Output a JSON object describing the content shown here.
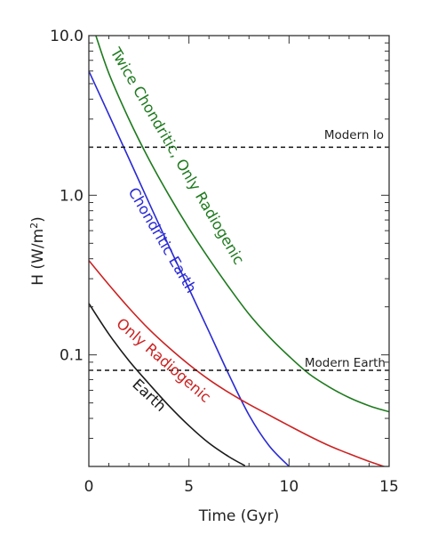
{
  "chart_data": {
    "type": "line",
    "xlabel": "Time (Gyr)",
    "ylabel_main": "H (W/m",
    "ylabel_sup": "2",
    "ylabel_close": ")",
    "xlim": [
      0,
      15
    ],
    "ylim": [
      0.02,
      10.0
    ],
    "yscale": "log",
    "grid": false,
    "x_ticks": [
      0,
      5,
      10,
      15
    ],
    "x_tick_labels": [
      "0",
      "5",
      "10",
      "15"
    ],
    "y_ticks": [
      0.1,
      1.0,
      10.0
    ],
    "y_tick_labels": [
      "0.1",
      "1.0",
      "10.0"
    ],
    "colors": {
      "twice_chondritic": "#1e7a1e",
      "chondritic_earth": "#2a2ad4",
      "only_radiogenic": "#cc2222",
      "earth": "#1a1a1a",
      "reference": "#111111",
      "axes": "#333333"
    },
    "series": [
      {
        "key": "twice_chondritic",
        "name": "Twice Chondritic, Only Radiogenic",
        "x": [
          0.35,
          1,
          2,
          3,
          4,
          5,
          6,
          7,
          8,
          9,
          10,
          11,
          12,
          13,
          14,
          15
        ],
        "y": [
          10.0,
          5.8,
          3.0,
          1.68,
          1.0,
          0.62,
          0.4,
          0.265,
          0.18,
          0.13,
          0.098,
          0.076,
          0.063,
          0.054,
          0.048,
          0.044
        ]
      },
      {
        "key": "chondritic_earth",
        "name": "Chondritic Earth",
        "x": [
          0,
          1,
          2,
          3,
          4,
          5,
          6,
          7,
          8,
          9,
          10
        ],
        "y": [
          6.0,
          3.2,
          1.7,
          0.9,
          0.48,
          0.26,
          0.14,
          0.075,
          0.042,
          0.027,
          0.02
        ]
      },
      {
        "key": "only_radiogenic",
        "name": "Only Radiogenic",
        "x": [
          0,
          1,
          2,
          3,
          4,
          5,
          6,
          7,
          8,
          9,
          10,
          11,
          12,
          13,
          14,
          15
        ],
        "y": [
          0.39,
          0.275,
          0.197,
          0.145,
          0.111,
          0.087,
          0.07,
          0.058,
          0.049,
          0.042,
          0.036,
          0.031,
          0.027,
          0.024,
          0.0215,
          0.0195
        ]
      },
      {
        "key": "earth",
        "name": "Earth",
        "x": [
          0,
          1,
          2,
          3,
          4,
          5,
          6,
          7,
          7.8
        ],
        "y": [
          0.21,
          0.135,
          0.092,
          0.066,
          0.048,
          0.036,
          0.028,
          0.023,
          0.0202
        ]
      }
    ],
    "reference_lines": [
      {
        "key": "modern_io",
        "label": "Modern Io",
        "y": 2.0
      },
      {
        "key": "modern_earth",
        "label": "Modern Earth",
        "y": 0.08
      }
    ]
  }
}
